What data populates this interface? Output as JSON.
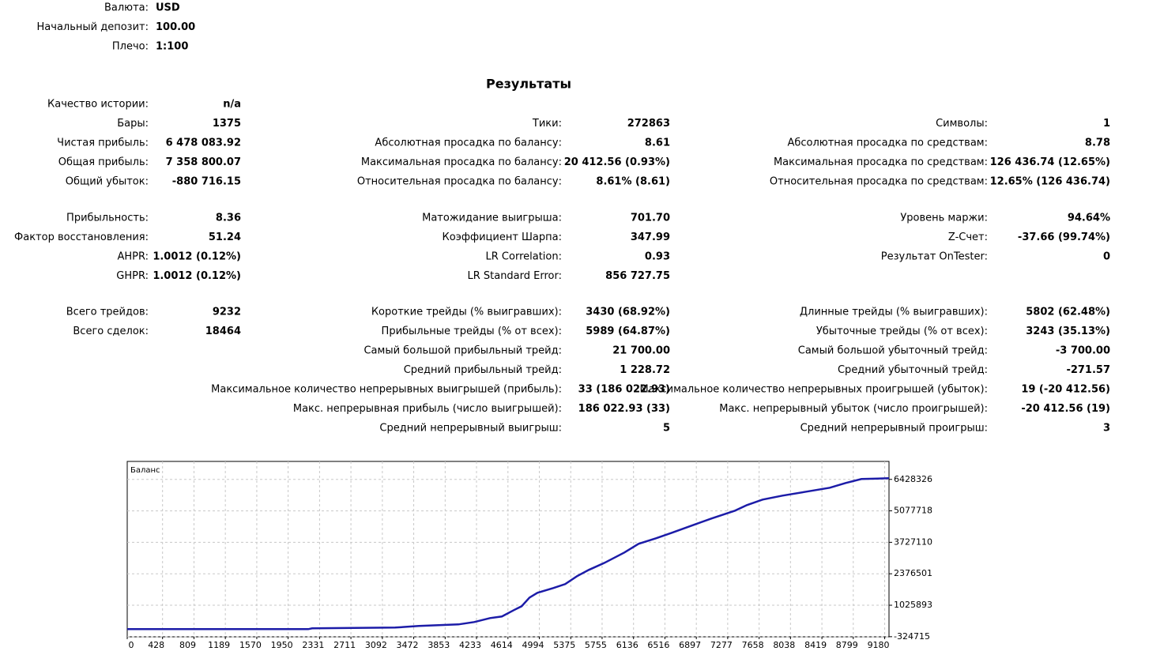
{
  "header": {
    "rows": [
      [
        "Валюта:",
        "USD"
      ],
      [
        "Начальный депозит:",
        "100.00"
      ],
      [
        "Плечо:",
        "1:100"
      ]
    ]
  },
  "results": {
    "title": "Результаты",
    "sections": [
      [
        [
          {
            "label": "Качество истории:",
            "value": "n/a"
          },
          null,
          null
        ],
        [
          {
            "label": "Бары:",
            "value": "1375"
          },
          {
            "label": "Тики:",
            "value": "272863"
          },
          {
            "label": "Символы:",
            "value": "1"
          }
        ],
        [
          {
            "label": "Чистая прибыль:",
            "value": "6 478 083.92"
          },
          {
            "label": "Абсолютная просадка по балансу:",
            "value": "8.61"
          },
          {
            "label": "Абсолютная просадка по средствам:",
            "value": "8.78"
          }
        ],
        [
          {
            "label": "Общая прибыль:",
            "value": "7 358 800.07"
          },
          {
            "label": "Максимальная просадка по балансу:",
            "value": "20 412.56 (0.93%)"
          },
          {
            "label": "Максимальная просадка по средствам:",
            "value": "126 436.74 (12.65%)"
          }
        ],
        [
          {
            "label": "Общий убыток:",
            "value": "-880 716.15"
          },
          {
            "label": "Относительная просадка по балансу:",
            "value": "8.61% (8.61)"
          },
          {
            "label": "Относительная просадка по средствам:",
            "value": "12.65% (126 436.74)"
          }
        ]
      ],
      [
        [
          {
            "label": "Прибыльность:",
            "value": "8.36"
          },
          {
            "label": "Матожидание выигрыша:",
            "value": "701.70"
          },
          {
            "label": "Уровень маржи:",
            "value": "94.64%"
          }
        ],
        [
          {
            "label": "Фактор восстановления:",
            "value": "51.24"
          },
          {
            "label": "Коэффициент Шарпа:",
            "value": "347.99"
          },
          {
            "label": "Z-Счет:",
            "value": "-37.66 (99.74%)"
          }
        ],
        [
          {
            "label": "AHPR:",
            "value": "1.0012 (0.12%)"
          },
          {
            "label": "LR Correlation:",
            "value": "0.93"
          },
          {
            "label": "Результат OnTester:",
            "value": "0"
          }
        ],
        [
          {
            "label": "GHPR:",
            "value": "1.0012 (0.12%)"
          },
          {
            "label": "LR Standard Error:",
            "value": "856 727.75"
          },
          null
        ]
      ],
      [
        [
          {
            "label": "Всего трейдов:",
            "value": "9232"
          },
          {
            "label": "Короткие трейды (% выигравших):",
            "value": "3430 (68.92%)"
          },
          {
            "label": "Длинные трейды (% выигравших):",
            "value": "5802 (62.48%)"
          }
        ],
        [
          {
            "label": "Всего сделок:",
            "value": "18464"
          },
          {
            "label": "Прибыльные трейды (% от всех):",
            "value": "5989 (64.87%)"
          },
          {
            "label": "Убыточные трейды (% от всех):",
            "value": "3243 (35.13%)"
          }
        ],
        [
          null,
          {
            "label": "Самый большой прибыльный трейд:",
            "value": "21 700.00"
          },
          {
            "label": "Самый большой убыточный трейд:",
            "value": "-3 700.00"
          }
        ],
        [
          null,
          {
            "label": "Средний прибыльный трейд:",
            "value": "1 228.72"
          },
          {
            "label": "Средний убыточный трейд:",
            "value": "-271.57"
          }
        ],
        [
          null,
          {
            "label": "Максимальное количество непрерывных выигрышей (прибыль):",
            "value": "33 (186 022.93)"
          },
          {
            "label": "Максимальное количество непрерывных проигрышей (убыток):",
            "value": "19 (-20 412.56)"
          }
        ],
        [
          null,
          {
            "label": "Макс. непрерывная прибыль (число выигрышей):",
            "value": "186 022.93 (33)"
          },
          {
            "label": "Макс. непрерывный убыток (число проигрышей):",
            "value": "-20 412.56 (19)"
          }
        ],
        [
          null,
          {
            "label": "Средний непрерывный выигрыш:",
            "value": "5"
          },
          {
            "label": "Средний непрерывный проигрыш:",
            "value": "3"
          }
        ]
      ]
    ]
  },
  "chart": {
    "type": "line",
    "label": "Баланс",
    "color": "#1c1ca8",
    "grid": true,
    "x": [
      0,
      2193,
      2241,
      3247,
      3534,
      4013,
      4205,
      4397,
      4540,
      4684,
      4780,
      4876,
      4971,
      5163,
      5307,
      5450,
      5594,
      5785,
      6025,
      6197,
      6408,
      6600,
      6839,
      7079,
      7366,
      7510,
      7701,
      7941,
      8228,
      8515,
      8707,
      8898,
      9090,
      9232
    ],
    "values": [
      100,
      100,
      34020,
      67940,
      135780,
      203620,
      305380,
      474980,
      542820,
      814180,
      983780,
      1356900,
      1560420,
      1763940,
      1933540,
      2272740,
      2544100,
      2849380,
      3290340,
      3663460,
      3900900,
      4138340,
      4443620,
      4748900,
      5088100,
      5325540,
      5562980,
      5732580,
      5902180,
      6071780,
      6275300,
      6444900,
      6460000,
      6478184
    ],
    "xlim": [
      0,
      9232
    ],
    "ylim": [
      -330000,
      7200000
    ],
    "xticks": [
      0,
      428,
      809,
      1189,
      1570,
      1950,
      2331,
      2711,
      3092,
      3472,
      3853,
      4233,
      4614,
      4994,
      5375,
      5755,
      6136,
      6516,
      6897,
      7277,
      7658,
      8038,
      8419,
      8799,
      9180
    ],
    "yticks": [
      -324715,
      1025893,
      2376501,
      3727110,
      5077718,
      6428326
    ]
  }
}
